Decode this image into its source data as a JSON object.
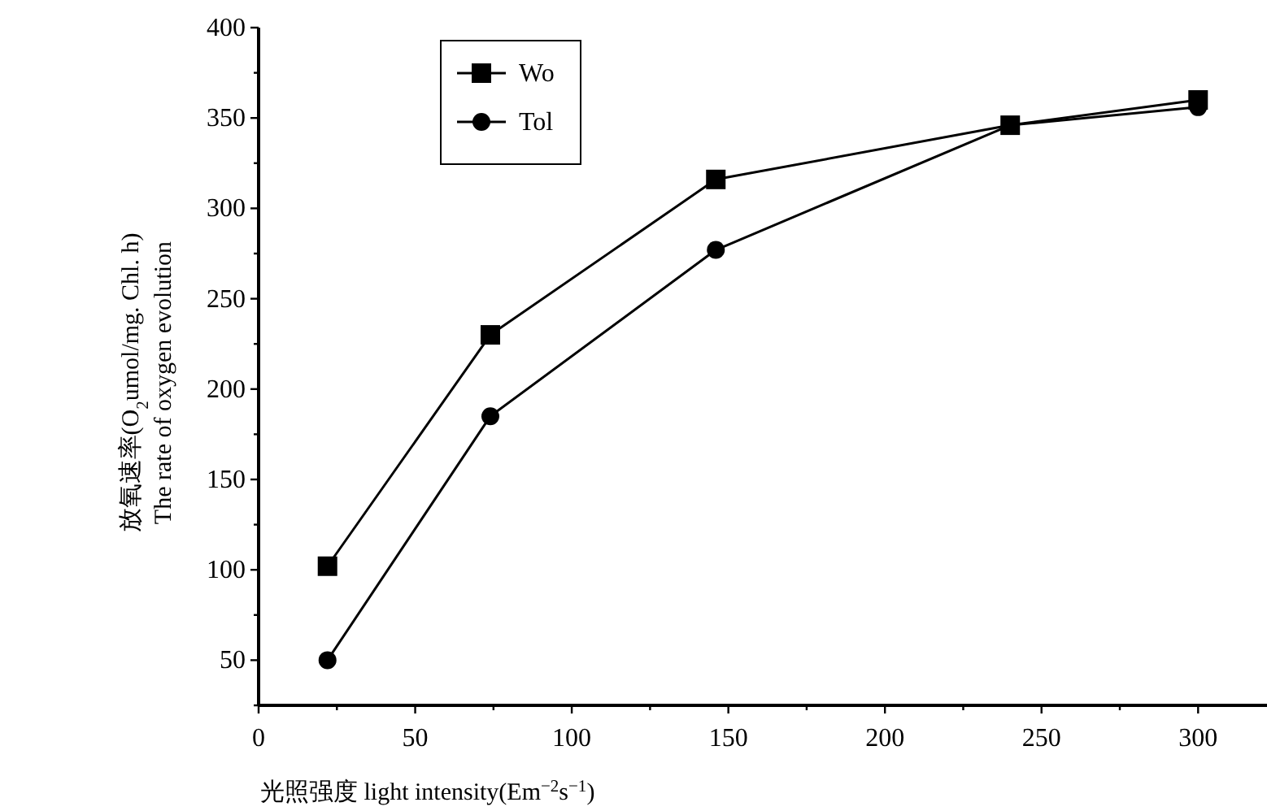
{
  "chart_data": {
    "type": "line",
    "xlabel": "光照强度 light intensity(Em$^{−2}$s$^{−1}$)",
    "ylabel": "放氧速率(O$_{2}$umol/mg. Chl. h)\nThe rate of oxygen evolution",
    "x": [
      22,
      74,
      146,
      240,
      300
    ],
    "series": [
      {
        "name": "Wo",
        "color": "#000000",
        "marker": "square",
        "values": [
          102,
          230,
          316,
          346,
          360
        ]
      },
      {
        "name": "Tol",
        "color": "#000000",
        "marker": "circle",
        "values": [
          50,
          185,
          277,
          346,
          356
        ]
      }
    ],
    "xlim": [
      0,
      322
    ],
    "ylim": [
      25,
      400
    ],
    "xticks": [
      0,
      {
        "value": 25,
        "label": null
      },
      50,
      {
        "value": 75,
        "label": null
      },
      100,
      {
        "value": 125,
        "label": null
      },
      150,
      {
        "value": 175,
        "label": null
      },
      200,
      {
        "value": 225,
        "label": null
      },
      250,
      {
        "value": 275,
        "label": null
      },
      300
    ],
    "yticks": [
      {
        "value": 25,
        "label": null
      },
      50,
      {
        "value": 75,
        "label": null
      },
      100,
      {
        "value": 125,
        "label": null
      },
      150,
      {
        "value": 175,
        "label": null
      },
      200,
      {
        "value": 225,
        "label": null
      },
      250,
      {
        "value": 275,
        "label": null
      },
      300,
      {
        "value": 325,
        "label": null
      },
      350,
      {
        "value": 375,
        "label": null
      },
      400
    ],
    "legend": "top left",
    "grid": false,
    "line_style": "solid"
  }
}
